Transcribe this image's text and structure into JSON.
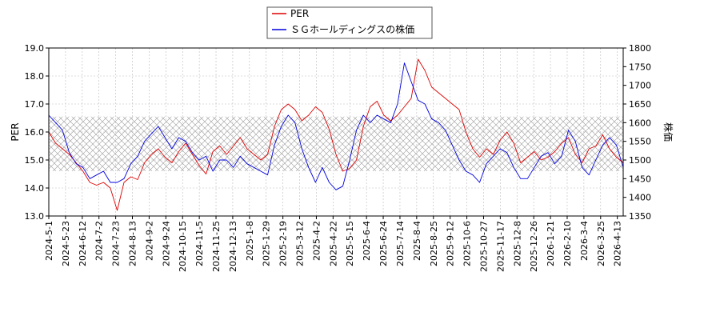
{
  "chart_data": {
    "type": "line",
    "legend": {
      "placement": "top-center"
    },
    "grid": true,
    "x_ticks": [
      "2024-5-1",
      "2024-5-23",
      "2024-6-12",
      "2024-7-2",
      "2024-7-23",
      "2024-8-13",
      "2024-9-2",
      "2024-9-24",
      "2024-10-15",
      "2024-11-5",
      "2024-11-25",
      "2024-12-13",
      "2025-1-8",
      "2025-1-29",
      "2025-2-19",
      "2025-3-12",
      "2025-4-2",
      "2025-4-22",
      "2025-5-15",
      "2025-6-4",
      "2025-6-24",
      "2025-7-14",
      "2025-8-4",
      "2025-8-25",
      "2025-9-12",
      "2025-10-6",
      "2025-10-27",
      "2025-11-17",
      "2025-12-8",
      "2025-12-26",
      "2026-1-21",
      "2026-2-10",
      "2026-3-4",
      "2026-3-25",
      "2026-4-13"
    ],
    "left_axis": {
      "label": "PER",
      "ylim": [
        13.0,
        19.0
      ],
      "ticks": [
        "13.0",
        "14.0",
        "15.0",
        "16.0",
        "17.0",
        "18.0",
        "19.0"
      ]
    },
    "right_axis": {
      "label": "株価",
      "ylim": [
        1350,
        1800
      ],
      "ticks": [
        "1350",
        "1400",
        "1450",
        "1500",
        "1550",
        "1600",
        "1650",
        "1700",
        "1750",
        "1800"
      ]
    },
    "shaded_band": {
      "axis": "left",
      "from": 14.6,
      "to": 16.55
    },
    "series": [
      {
        "name": "PER",
        "axis": "left",
        "color": "#dd0000",
        "values": [
          16.0,
          15.6,
          15.4,
          15.2,
          14.9,
          14.6,
          14.2,
          14.1,
          14.2,
          14.0,
          13.2,
          14.2,
          14.4,
          14.3,
          14.9,
          15.2,
          15.4,
          15.1,
          14.9,
          15.3,
          15.6,
          15.2,
          14.8,
          14.5,
          15.3,
          15.5,
          15.2,
          15.5,
          15.8,
          15.4,
          15.2,
          15.0,
          15.2,
          16.2,
          16.8,
          17.0,
          16.8,
          16.4,
          16.6,
          16.9,
          16.7,
          16.1,
          15.2,
          14.6,
          14.7,
          15.0,
          16.2,
          16.9,
          17.1,
          16.6,
          16.4,
          16.6,
          16.9,
          17.2,
          18.6,
          18.2,
          17.6,
          17.4,
          17.2,
          17.0,
          16.8,
          16.0,
          15.4,
          15.1,
          15.4,
          15.2,
          15.7,
          16.0,
          15.6,
          14.9,
          15.1,
          15.3,
          15.0,
          15.1,
          15.3,
          15.6,
          15.8,
          15.2,
          14.9,
          15.4,
          15.5,
          15.9,
          15.4,
          15.1,
          14.9
        ]
      },
      {
        "name": "ＳＧホールディングスの株価",
        "axis": "right",
        "color": "#0000dd",
        "values": [
          1620,
          1600,
          1580,
          1520,
          1490,
          1480,
          1450,
          1460,
          1470,
          1440,
          1440,
          1450,
          1490,
          1510,
          1550,
          1570,
          1590,
          1560,
          1530,
          1560,
          1550,
          1520,
          1500,
          1510,
          1470,
          1500,
          1500,
          1480,
          1510,
          1490,
          1480,
          1470,
          1460,
          1540,
          1590,
          1620,
          1600,
          1530,
          1480,
          1440,
          1480,
          1440,
          1420,
          1430,
          1500,
          1580,
          1620,
          1600,
          1620,
          1610,
          1600,
          1650,
          1760,
          1710,
          1660,
          1650,
          1610,
          1600,
          1580,
          1540,
          1500,
          1470,
          1460,
          1440,
          1490,
          1510,
          1530,
          1520,
          1480,
          1450,
          1450,
          1480,
          1510,
          1520,
          1490,
          1510,
          1580,
          1550,
          1480,
          1460,
          1500,
          1540,
          1560,
          1540,
          1480
        ]
      }
    ]
  }
}
